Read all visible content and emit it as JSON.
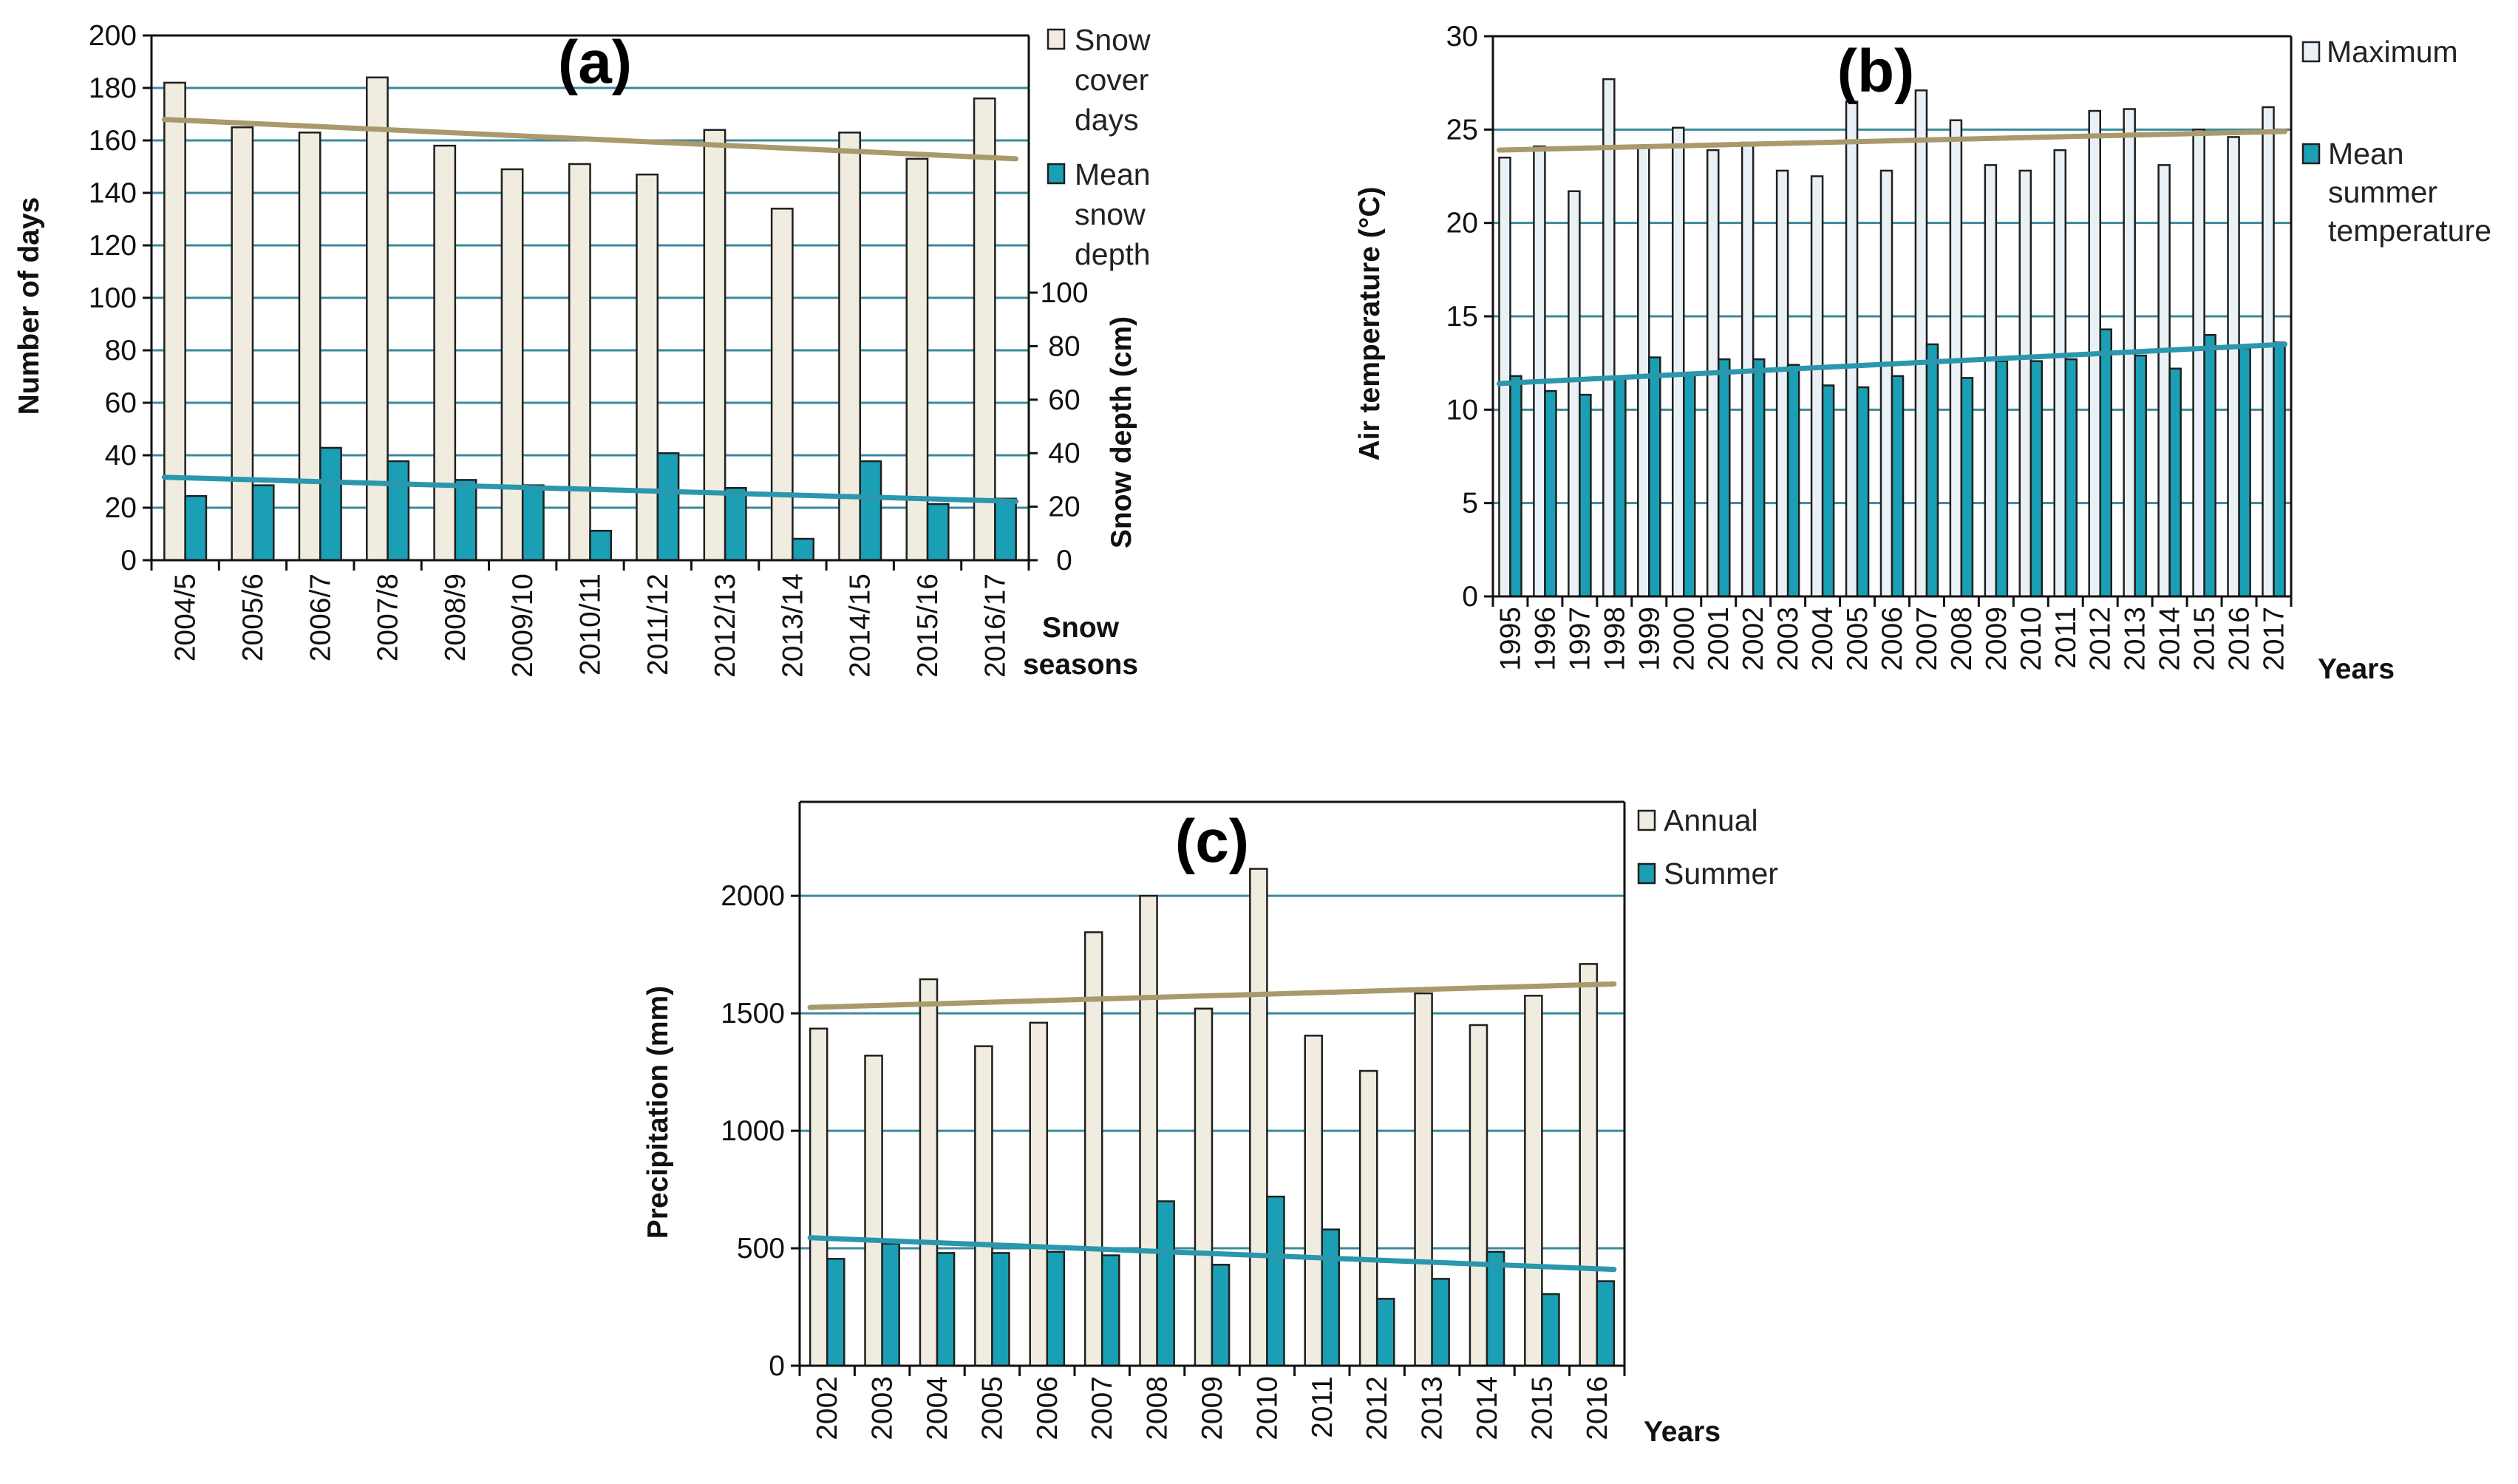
{
  "colors": {
    "primary_bar": "#f0ece0",
    "primary_bar_b": "#eaf1f6",
    "secondary_bar": "#1a9fb5",
    "bar_stroke": "#1f1f1f",
    "trend_primary": "#a89a6c",
    "trend_secondary": "#2a97ad",
    "grid": "#3a8a9c"
  },
  "chart_data": [
    {
      "id": "a",
      "type": "bar",
      "title": "(a)",
      "categories": [
        "2004/5",
        "2005/6",
        "2006/7",
        "2007/8",
        "2008/9",
        "2009/10",
        "2010/11",
        "2011/12",
        "2012/13",
        "2013/14",
        "2014/15",
        "2015/16",
        "2016/17"
      ],
      "series": [
        {
          "name": "Snow cover days",
          "legend": [
            "Snow",
            "cover",
            "days"
          ],
          "axis": "left",
          "values": [
            182,
            165,
            163,
            184,
            158,
            149,
            151,
            147,
            164,
            134,
            163,
            153,
            176
          ],
          "trend": [
            168,
            153
          ]
        },
        {
          "name": "Mean snow depth",
          "legend": [
            "Mean",
            "snow",
            "depth"
          ],
          "axis": "right",
          "values": [
            24,
            28,
            42,
            37,
            30,
            28,
            11,
            40,
            27,
            8,
            37,
            21,
            23
          ],
          "trend": [
            31,
            22
          ]
        }
      ],
      "ylabel": "Number of days",
      "ylim": [
        0,
        200
      ],
      "yticks": [
        0,
        20,
        40,
        60,
        80,
        100,
        120,
        140,
        160,
        180,
        200
      ],
      "y2label": "Snow depth (cm)",
      "y2lim": [
        0,
        100
      ],
      "y2ticks": [
        0,
        20,
        40,
        60,
        80,
        100
      ],
      "xlabel": [
        "Snow",
        "seasons"
      ],
      "grid": true,
      "legend": "right"
    },
    {
      "id": "b",
      "type": "bar",
      "title": "(b)",
      "categories": [
        "1995",
        "1996",
        "1997",
        "1998",
        "1999",
        "2000",
        "2001",
        "2002",
        "2003",
        "2004",
        "2005",
        "2006",
        "2007",
        "2008",
        "2009",
        "2010",
        "2011",
        "2012",
        "2013",
        "2014",
        "2015",
        "2016",
        "2017"
      ],
      "series": [
        {
          "name": "Maximum",
          "legend": [
            "Maximum"
          ],
          "axis": "left",
          "values": [
            23.5,
            24.1,
            21.7,
            27.7,
            24.1,
            25.1,
            23.9,
            24.3,
            22.8,
            22.5,
            26.5,
            22.8,
            27.1,
            25.5,
            23.1,
            22.8,
            23.9,
            26.0,
            26.1,
            23.1,
            25.0,
            24.6,
            26.2
          ],
          "trend": [
            23.9,
            24.9
          ]
        },
        {
          "name": "Mean summer temperature",
          "legend": [
            "Mean",
            "summer",
            "temperature"
          ],
          "axis": "left",
          "values": [
            11.8,
            11.0,
            10.8,
            11.7,
            12.8,
            11.9,
            12.7,
            12.7,
            12.4,
            11.3,
            11.2,
            11.8,
            13.5,
            11.7,
            12.6,
            12.6,
            12.7,
            14.3,
            12.9,
            12.2,
            14.0,
            13.3,
            13.6
          ],
          "trend": [
            11.4,
            13.5
          ]
        }
      ],
      "ylabel": "Air temperature (°C)",
      "ylim": [
        0,
        30
      ],
      "yticks": [
        0,
        5,
        10,
        15,
        20,
        25,
        30
      ],
      "xlabel": [
        "Years"
      ],
      "grid": true,
      "legend": "right"
    },
    {
      "id": "c",
      "type": "bar",
      "title": "(c)",
      "categories": [
        "2002",
        "2003",
        "2004",
        "2005",
        "2006",
        "2007",
        "2008",
        "2009",
        "2010",
        "2011",
        "2012",
        "2013",
        "2014",
        "2015",
        "2016"
      ],
      "series": [
        {
          "name": "Annual",
          "legend": [
            "Annual"
          ],
          "axis": "left",
          "values": [
            1435,
            1320,
            1645,
            1360,
            1460,
            1845,
            2000,
            1520,
            2115,
            1405,
            1255,
            1585,
            1450,
            1575,
            1710
          ],
          "trend": [
            1525,
            1625
          ]
        },
        {
          "name": "Summer",
          "legend": [
            "Summer"
          ],
          "axis": "left",
          "values": [
            455,
            520,
            480,
            480,
            485,
            470,
            700,
            430,
            720,
            580,
            285,
            370,
            485,
            305,
            360
          ],
          "trend": [
            545,
            410
          ]
        }
      ],
      "ylabel": "Precipitation (mm)",
      "ylim": [
        0,
        2400
      ],
      "yticks": [
        0,
        500,
        1000,
        1500,
        2000
      ],
      "xlabel": [
        "Years"
      ],
      "grid": true,
      "legend": "right"
    }
  ]
}
